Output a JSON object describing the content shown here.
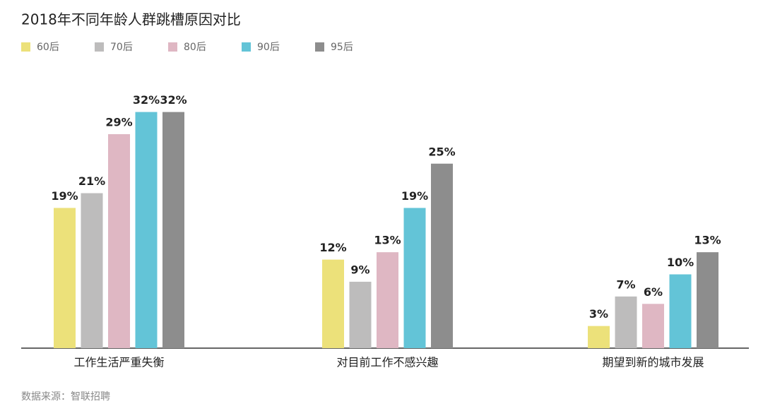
{
  "chart_data": {
    "type": "bar",
    "title": "2018年不同年龄人群跳槽原因对比",
    "source": "数据来源：智联招聘",
    "categories": [
      "工作生活严重失衡",
      "对目前工作不感兴趣",
      "期望到新的城市发展"
    ],
    "series": [
      {
        "name": "60后",
        "color": "#ece17a",
        "values": [
          19,
          12,
          3
        ],
        "value_labels": [
          "19%",
          "12%",
          "3%"
        ]
      },
      {
        "name": "70后",
        "color": "#bdbcbc",
        "values": [
          21,
          9,
          7
        ],
        "value_labels": [
          "21%",
          "9%",
          "7%"
        ]
      },
      {
        "name": "80后",
        "color": "#dfb7c3",
        "values": [
          29,
          13,
          6
        ],
        "value_labels": [
          "29%",
          "13%",
          "6%"
        ]
      },
      {
        "name": "90后",
        "color": "#63c4d7",
        "values": [
          32,
          19,
          10
        ],
        "value_labels": [
          "32%",
          "19%",
          "10%"
        ]
      },
      {
        "name": "95后",
        "color": "#8d8d8d",
        "values": [
          32,
          25,
          13
        ],
        "value_labels": [
          "32%",
          "25%",
          "13%"
        ]
      }
    ]
  }
}
